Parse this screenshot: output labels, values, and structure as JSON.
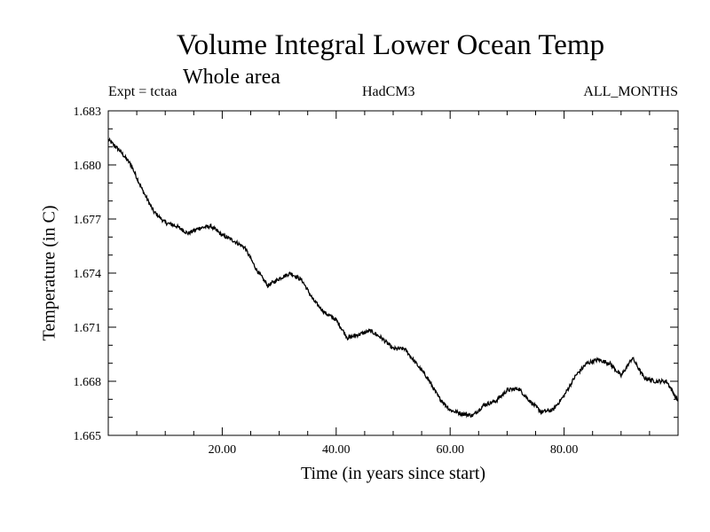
{
  "chart_data": {
    "type": "line",
    "title": "Volume Integral Lower Ocean Temp",
    "subtitle": "Whole area",
    "annotations": {
      "left": "Expt = tctaa",
      "center": "HadCM3",
      "right": "ALL_MONTHS"
    },
    "xlabel": "Time (in years since start)",
    "ylabel": "Temperature (in C)",
    "xlim": [
      0.0,
      100.0
    ],
    "ylim": [
      1.665,
      1.683
    ],
    "x_ticks": [
      20.0,
      40.0,
      60.0,
      80.0
    ],
    "x_tick_labels": [
      "20.00",
      "40.00",
      "60.00",
      "80.00"
    ],
    "y_ticks": [
      1.665,
      1.668,
      1.671,
      1.674,
      1.677,
      1.68,
      1.683
    ],
    "y_tick_labels": [
      "1.665",
      "1.668",
      "1.671",
      "1.674",
      "1.677",
      "1.680",
      "1.683"
    ],
    "grid": false,
    "legend": "none",
    "series": [
      {
        "color": "#000000",
        "x": [
          0,
          2,
          4,
          6,
          8,
          10,
          12,
          14,
          16,
          18,
          20,
          22,
          24,
          26,
          28,
          30,
          32,
          34,
          36,
          38,
          40,
          42,
          44,
          46,
          48,
          50,
          52,
          54,
          56,
          58,
          60,
          62,
          64,
          66,
          68,
          70,
          72,
          74,
          76,
          78,
          80,
          82,
          84,
          86,
          88,
          90,
          92,
          94,
          96,
          98,
          100
        ],
        "y": [
          1.6814,
          1.6808,
          1.68,
          1.6786,
          1.6774,
          1.6768,
          1.6766,
          1.6762,
          1.6765,
          1.6766,
          1.6761,
          1.6758,
          1.6754,
          1.6742,
          1.6733,
          1.6737,
          1.674,
          1.6736,
          1.6725,
          1.6718,
          1.6714,
          1.6704,
          1.6706,
          1.6708,
          1.6704,
          1.6698,
          1.6698,
          1.669,
          1.6682,
          1.6671,
          1.6664,
          1.6662,
          1.6661,
          1.6667,
          1.6669,
          1.6675,
          1.6676,
          1.6669,
          1.6663,
          1.6664,
          1.6672,
          1.6683,
          1.669,
          1.6692,
          1.669,
          1.6683,
          1.6693,
          1.6682,
          1.668,
          1.668,
          1.6669
        ]
      }
    ]
  },
  "colors": {
    "line": "#000000",
    "axes": "#000000",
    "background": "#ffffff"
  }
}
